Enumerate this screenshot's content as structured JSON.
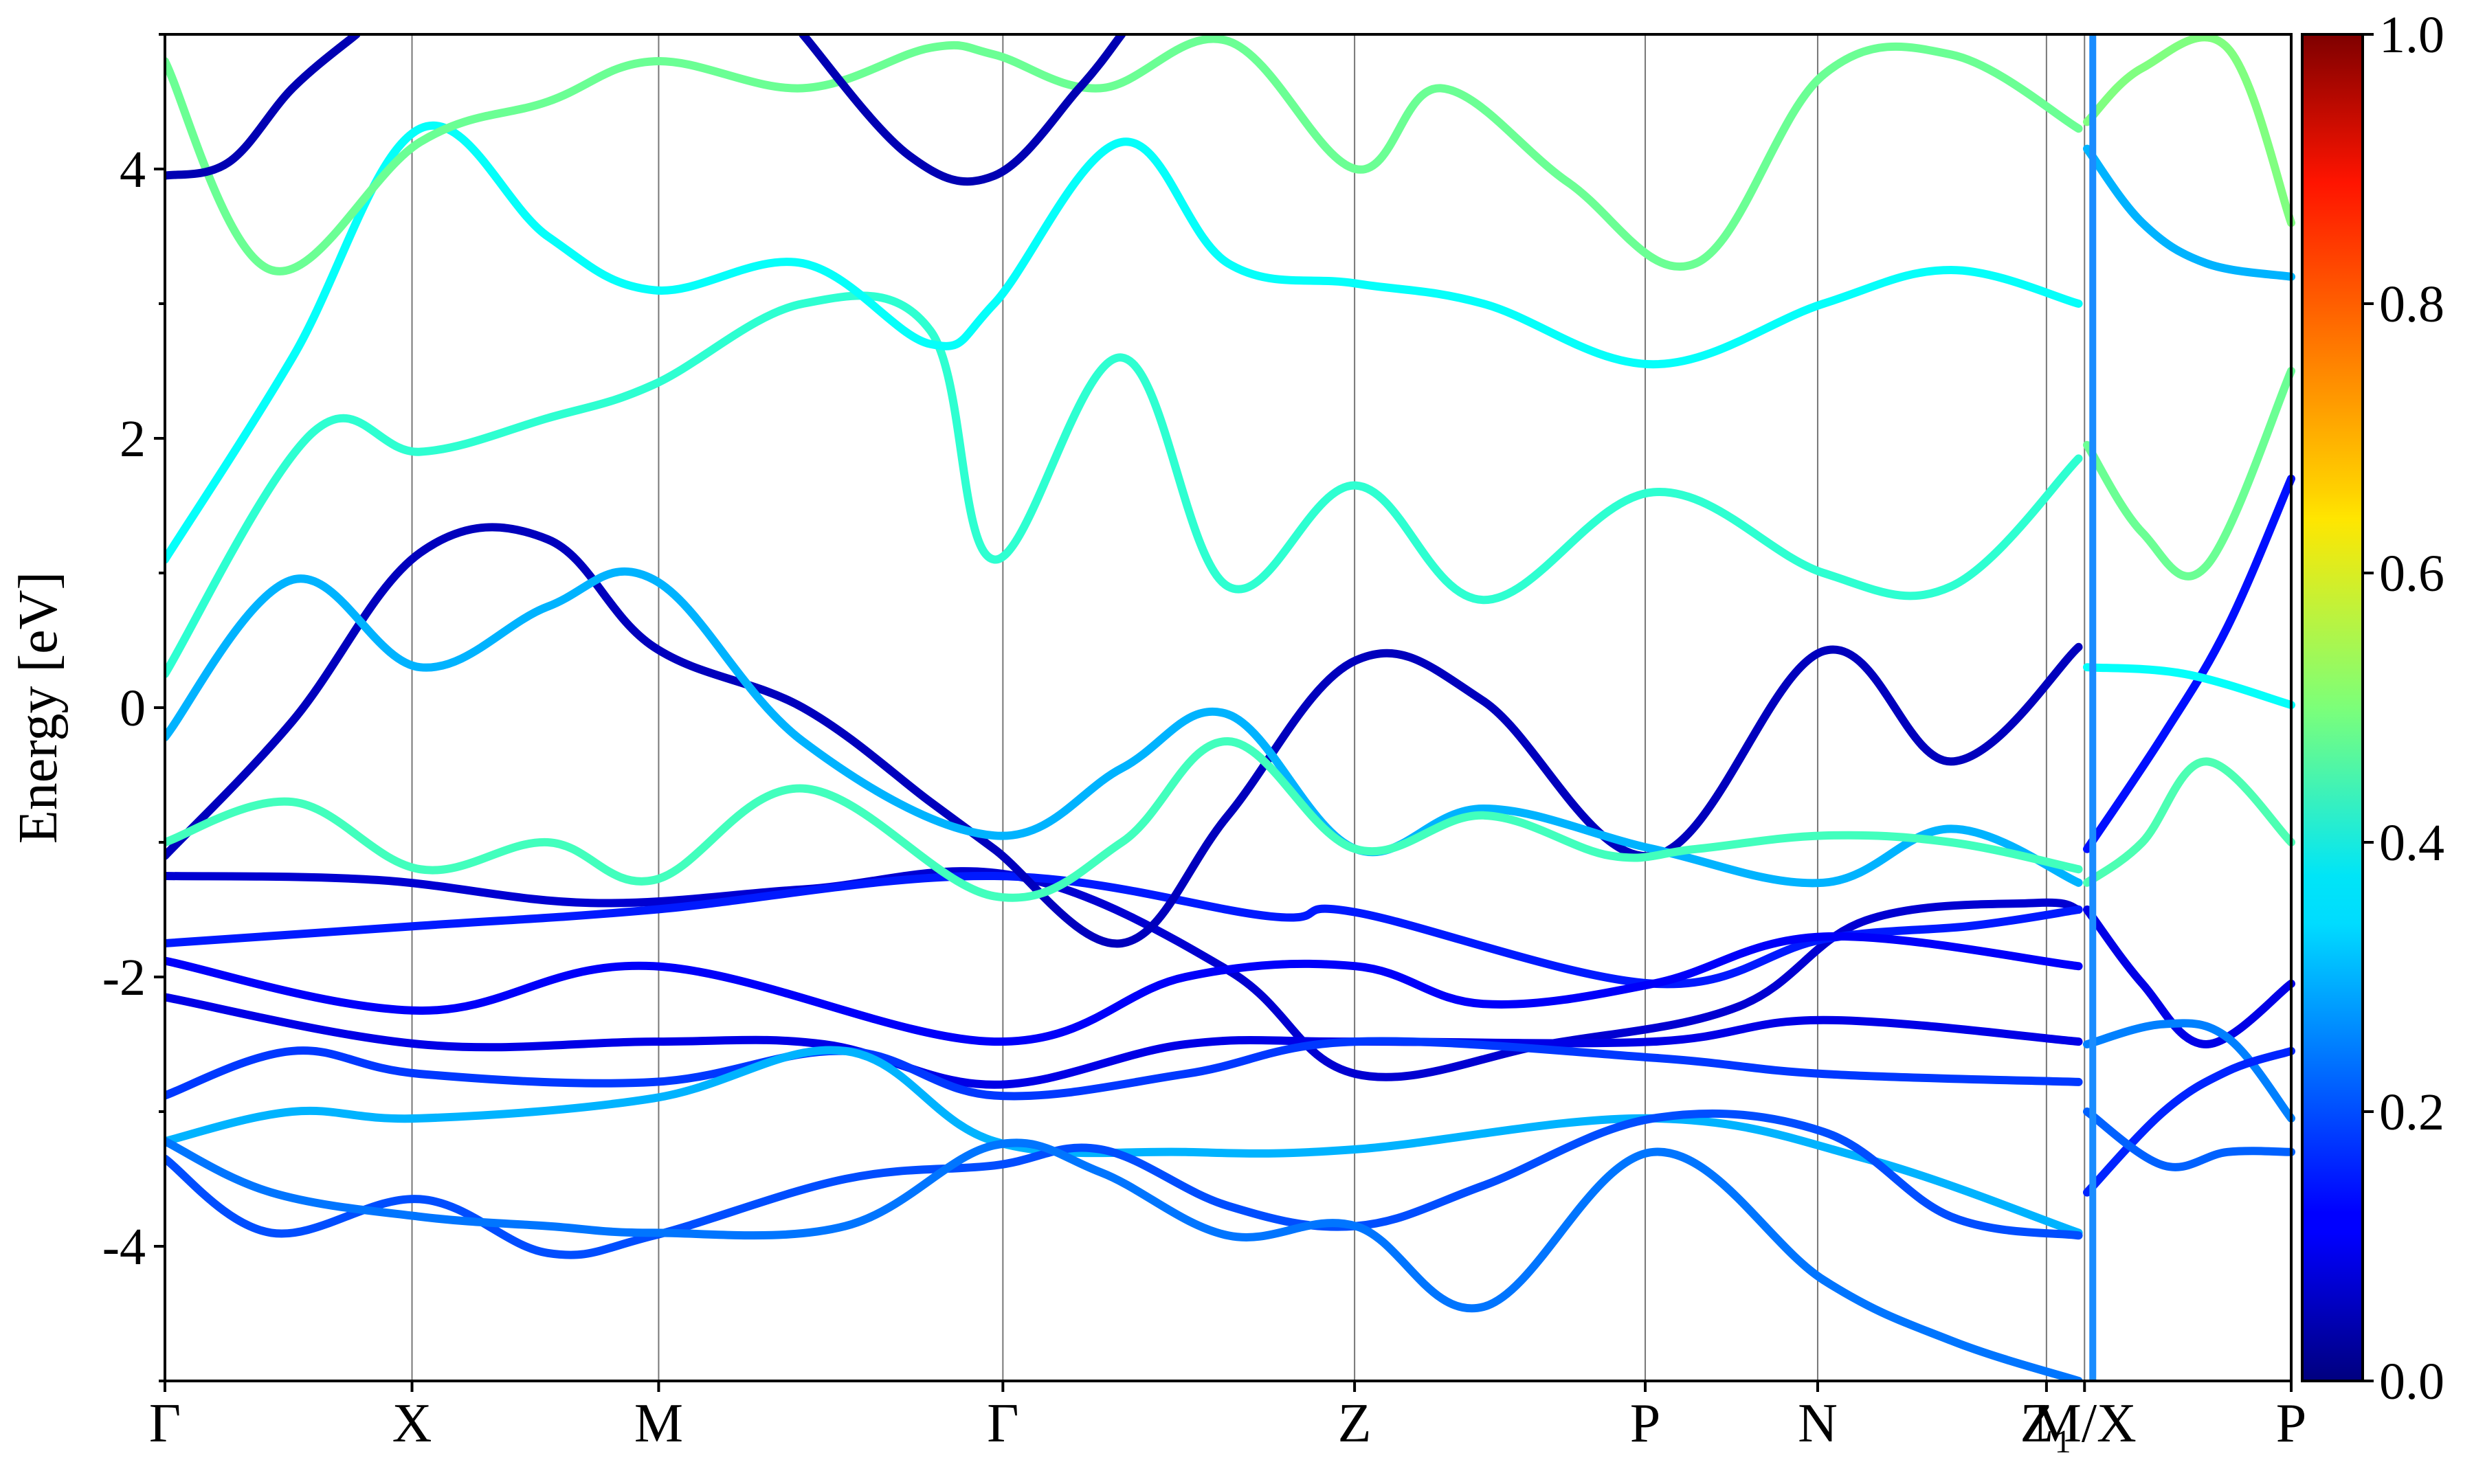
{
  "chart_data": {
    "type": "line",
    "title": "",
    "xlabel": "",
    "ylabel": "Energy [eV]",
    "ylim": [
      -5,
      5
    ],
    "y_ticks": [
      -4,
      -2,
      0,
      2,
      4
    ],
    "y_tick_labels": [
      "-4",
      "-2",
      "0",
      "2",
      "4"
    ],
    "k_path": [
      "Γ",
      "X",
      "M",
      "Γ",
      "Z",
      "P",
      "N",
      "Z₁",
      "M/X",
      "P"
    ],
    "k_positions": [
      0,
      0.1162,
      0.2322,
      0.3941,
      0.5595,
      0.6962,
      0.7773,
      0.8849,
      0.9028,
      1.0
    ],
    "colormap": "jet",
    "colorbar": {
      "range": [
        0,
        1
      ],
      "tick_values": [
        0,
        0.2,
        0.4,
        0.6,
        0.8,
        1
      ],
      "tick_labels": [
        "0.0",
        "0.2",
        "0.4",
        "0.6",
        "0.8",
        "1.0"
      ]
    },
    "grid": "vertical lines at high-symmetry points",
    "legend": "none",
    "series": [
      {
        "c": 0.08,
        "k": [
          0,
          0.1,
          0.2,
          0.3,
          0.4,
          0.5,
          0.56,
          0.65,
          0.74,
          0.8,
          0.88,
          0.9
        ],
        "E": [
          -1.25,
          -1.28,
          -1.45,
          -1.35,
          -1.25,
          -1.95,
          -2.72,
          -2.5,
          -2.22,
          -1.58,
          -1.45,
          -1.5
        ]
      },
      {
        "c": 0.15,
        "k": [
          0,
          0.12,
          0.23,
          0.39,
          0.52,
          0.56,
          0.7,
          0.78,
          0.85,
          0.9
        ],
        "E": [
          -1.75,
          -1.62,
          -1.5,
          -1.25,
          -1.55,
          -1.52,
          -2.05,
          -1.72,
          -1.62,
          -1.5
        ]
      },
      {
        "c": 0.12,
        "k": [
          0,
          0.12,
          0.23,
          0.39,
          0.48,
          0.56,
          0.62,
          0.7,
          0.78,
          0.9
        ],
        "E": [
          -1.88,
          -2.25,
          -1.92,
          -2.48,
          -2.0,
          -1.92,
          -2.2,
          -2.05,
          -1.7,
          -1.92
        ]
      },
      {
        "c": 0.1,
        "k": [
          0,
          0.12,
          0.23,
          0.31,
          0.39,
          0.48,
          0.56,
          0.7,
          0.78,
          0.9
        ],
        "E": [
          -2.15,
          -2.5,
          -2.48,
          -2.5,
          -2.8,
          -2.5,
          -2.48,
          -2.48,
          -2.32,
          -2.48
        ]
      },
      {
        "c": 0.18,
        "k": [
          0,
          0.06,
          0.12,
          0.23,
          0.32,
          0.39,
          0.48,
          0.56,
          0.7,
          0.78,
          0.9
        ],
        "E": [
          -2.88,
          -2.55,
          -2.72,
          -2.78,
          -2.55,
          -2.88,
          -2.72,
          -2.48,
          -2.6,
          -2.72,
          -2.78
        ]
      },
      {
        "c": 0.3,
        "k": [
          0,
          0.06,
          0.12,
          0.23,
          0.32,
          0.39,
          0.48,
          0.56,
          0.7,
          0.8,
          0.9
        ],
        "E": [
          -3.22,
          -3.0,
          -3.05,
          -2.9,
          -2.55,
          -3.22,
          -3.3,
          -3.28,
          -3.05,
          -3.35,
          -3.9
        ]
      },
      {
        "c": 0.2,
        "k": [
          0,
          0.05,
          0.12,
          0.18,
          0.23,
          0.32,
          0.39,
          0.44,
          0.5,
          0.56,
          0.62,
          0.7,
          0.78,
          0.84,
          0.9
        ],
        "E": [
          -3.35,
          -3.9,
          -3.65,
          -4.05,
          -3.92,
          -3.5,
          -3.4,
          -3.28,
          -3.7,
          -3.85,
          -3.55,
          -3.05,
          -3.15,
          -3.78,
          -3.92
        ]
      },
      {
        "c": 0.24,
        "k": [
          0,
          0.05,
          0.12,
          0.18,
          0.23,
          0.32,
          0.39,
          0.44,
          0.5,
          0.56,
          0.62,
          0.7,
          0.78,
          0.84,
          0.9
        ],
        "E": [
          -3.22,
          -3.6,
          -3.78,
          -3.85,
          -3.9,
          -3.85,
          -3.25,
          -3.45,
          -3.92,
          -3.85,
          -4.45,
          -3.3,
          -4.25,
          -4.7,
          -5.0
        ]
      },
      {
        "c": 0.06,
        "k": [
          0,
          0.06,
          0.12,
          0.18,
          0.23,
          0.3,
          0.36,
          0.39,
          0.45,
          0.5,
          0.56,
          0.62,
          0.7,
          0.78,
          0.84,
          0.9
        ],
        "E": [
          -1.1,
          -0.1,
          1.15,
          1.25,
          0.45,
          0.0,
          -0.7,
          -1.05,
          -1.75,
          -0.8,
          0.35,
          0.05,
          -1.1,
          0.42,
          -0.4,
          0.45
        ]
      },
      {
        "c": 0.3,
        "k": [
          0,
          0.06,
          0.12,
          0.18,
          0.23,
          0.3,
          0.39,
          0.45,
          0.5,
          0.56,
          0.62,
          0.7,
          0.78,
          0.84,
          0.9
        ],
        "E": [
          -0.22,
          0.95,
          0.3,
          0.75,
          0.95,
          -0.25,
          -0.95,
          -0.45,
          -0.05,
          -1.05,
          -0.75,
          -1.05,
          -1.3,
          -0.9,
          -1.3
        ]
      },
      {
        "c": 0.44,
        "k": [
          0,
          0.06,
          0.12,
          0.18,
          0.23,
          0.3,
          0.39,
          0.45,
          0.5,
          0.56,
          0.62,
          0.68,
          0.72,
          0.78,
          0.84,
          0.9
        ],
        "E": [
          -1.0,
          -0.7,
          -1.2,
          -1.0,
          -1.28,
          -0.6,
          -1.4,
          -1.0,
          -0.25,
          -1.05,
          -0.8,
          -1.1,
          -1.05,
          -0.95,
          -1.0,
          -1.2
        ]
      },
      {
        "c": 0.42,
        "k": [
          0,
          0.07,
          0.12,
          0.18,
          0.23,
          0.3,
          0.36,
          0.39,
          0.45,
          0.5,
          0.56,
          0.62,
          0.7,
          0.78,
          0.84,
          0.9
        ],
        "E": [
          0.25,
          2.05,
          1.9,
          2.15,
          2.4,
          3.0,
          2.8,
          1.1,
          2.6,
          0.9,
          1.65,
          0.8,
          1.6,
          1.0,
          0.9,
          1.85
        ]
      },
      {
        "c": 0.38,
        "k": [
          0,
          0.06,
          0.12,
          0.18,
          0.23,
          0.3,
          0.36,
          0.39,
          0.45,
          0.5,
          0.56,
          0.62,
          0.7,
          0.78,
          0.84,
          0.9
        ],
        "E": [
          1.1,
          2.6,
          4.3,
          3.5,
          3.1,
          3.3,
          2.7,
          3.0,
          4.2,
          3.3,
          3.15,
          3.0,
          2.55,
          3.0,
          3.25,
          3.0
        ]
      },
      {
        "c": 0.48,
        "k": [
          0,
          0.05,
          0.12,
          0.18,
          0.23,
          0.3,
          0.36,
          0.39,
          0.44,
          0.5,
          0.56,
          0.6,
          0.66,
          0.72,
          0.78,
          0.84,
          0.9
        ],
        "E": [
          4.8,
          3.25,
          4.2,
          4.5,
          4.8,
          4.6,
          4.9,
          4.85,
          4.6,
          4.95,
          4.0,
          4.6,
          3.9,
          3.3,
          4.7,
          4.85,
          4.3
        ]
      },
      {
        "c": 0.05,
        "k": [
          0,
          0.03,
          0.06,
          0.09
        ],
        "E": [
          3.95,
          4.05,
          4.6,
          5.0
        ]
      },
      {
        "c": 0.05,
        "k": [
          0.3,
          0.35,
          0.39,
          0.43,
          0.45
        ],
        "E": [
          5.0,
          4.1,
          3.95,
          4.6,
          5.0
        ]
      },
      {
        "c": 0.1,
        "k": [
          0.904,
          0.93,
          0.96,
          1.0
        ],
        "E": [
          -1.5,
          -2.05,
          -2.5,
          -2.05
        ]
      },
      {
        "c": 0.25,
        "k": [
          0.904,
          0.94,
          0.97,
          1.0
        ],
        "E": [
          -2.5,
          -2.35,
          -2.45,
          -3.05
        ]
      },
      {
        "c": 0.16,
        "k": [
          0.904,
          0.94,
          0.97,
          1.0
        ],
        "E": [
          -3.6,
          -3.0,
          -2.7,
          -2.55
        ]
      },
      {
        "c": 0.22,
        "k": [
          0.904,
          0.94,
          0.97,
          1.0
        ],
        "E": [
          -3.0,
          -3.4,
          -3.3,
          -3.3
        ]
      },
      {
        "c": 0.14,
        "k": [
          0.904,
          0.94,
          0.97,
          1.0
        ],
        "E": [
          -1.05,
          -0.2,
          0.6,
          1.7
        ]
      },
      {
        "c": 0.38,
        "k": [
          0.904,
          0.95,
          1.0
        ],
        "E": [
          0.3,
          0.25,
          0.02
        ]
      },
      {
        "c": 0.45,
        "k": [
          0.904,
          0.93,
          0.96,
          1.0
        ],
        "E": [
          -1.3,
          -1.0,
          -0.4,
          -1.0
        ]
      },
      {
        "c": 0.3,
        "k": [
          0.904,
          0.93,
          0.96,
          1.0
        ],
        "E": [
          4.15,
          3.6,
          3.3,
          3.2
        ]
      },
      {
        "c": 0.48,
        "k": [
          0.904,
          0.93,
          0.96,
          1.0
        ],
        "E": [
          1.95,
          1.3,
          1.05,
          2.5
        ]
      },
      {
        "c": 0.5,
        "k": [
          0.904,
          0.93,
          0.97,
          1.0
        ],
        "E": [
          4.35,
          4.75,
          4.9,
          3.6
        ]
      }
    ]
  }
}
